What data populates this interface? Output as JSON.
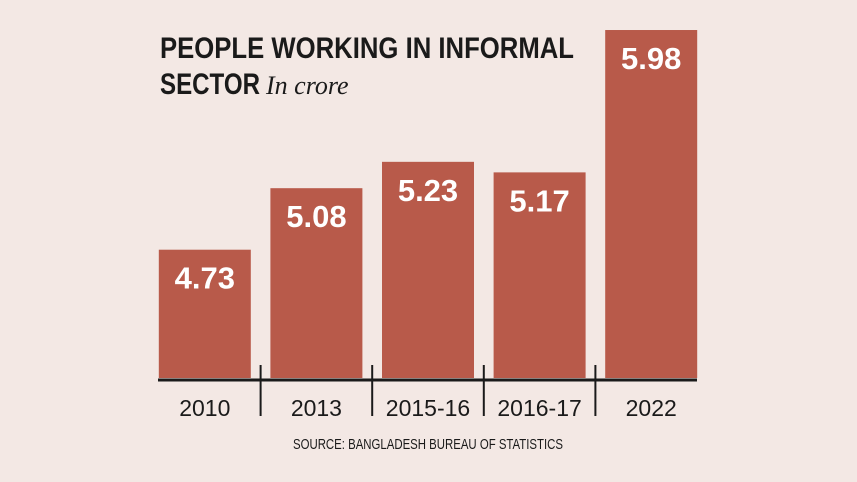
{
  "chart_data": {
    "type": "bar",
    "title": [
      "PEOPLE WORKING IN INFORMAL",
      "SECTOR"
    ],
    "subtitle": "In crore",
    "categories": [
      "2010",
      "2013",
      "2015-16",
      "2016-17",
      "2022"
    ],
    "values": [
      4.73,
      5.08,
      5.23,
      5.17,
      5.98
    ],
    "color": "#b85a4a",
    "ylim": [
      4,
      6
    ],
    "source": "SOURCE: BANGLADESH BUREAU OF STATISTICS"
  }
}
